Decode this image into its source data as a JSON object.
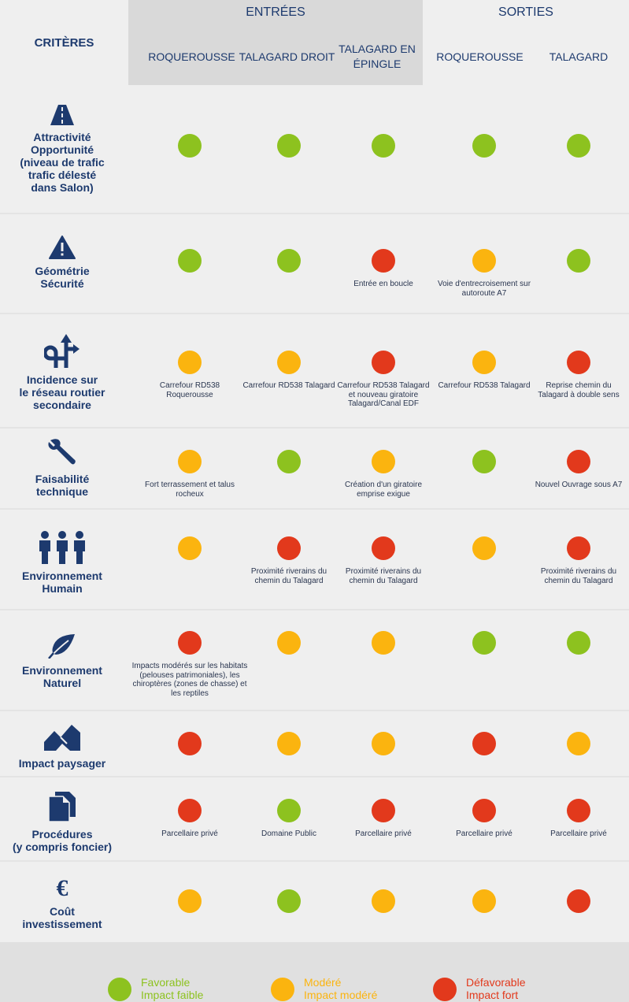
{
  "colors": {
    "green": "#8dc21f",
    "orange": "#fbb40f",
    "red": "#e2391c",
    "navy": "#1d3a6e"
  },
  "header": {
    "criteres": "CRITÈRES",
    "entrees": "ENTRÉES",
    "sorties": "SORTIES",
    "columns": [
      "ROQUEROUSSE",
      "TALAGARD DROIT",
      "TALAGARD EN ÉPINGLE",
      "ROQUEROUSSE",
      "TALAGARD"
    ]
  },
  "rows": [
    {
      "icon": "road-icon",
      "label": [
        "Attractivité",
        "Opportunité",
        "(niveau de trafic",
        "trafic délesté",
        "dans Salon)"
      ],
      "cells": [
        {
          "rating": "green",
          "note": ""
        },
        {
          "rating": "green",
          "note": ""
        },
        {
          "rating": "green",
          "note": ""
        },
        {
          "rating": "green",
          "note": ""
        },
        {
          "rating": "green",
          "note": ""
        }
      ]
    },
    {
      "icon": "warning-icon",
      "label": [
        "Géométrie",
        "Sécurité"
      ],
      "cells": [
        {
          "rating": "green",
          "note": ""
        },
        {
          "rating": "green",
          "note": ""
        },
        {
          "rating": "red",
          "note": "Entrée en boucle"
        },
        {
          "rating": "orange",
          "note": "Voie d'entrecroisement sur autoroute A7"
        },
        {
          "rating": "green",
          "note": ""
        }
      ]
    },
    {
      "icon": "road-network-icon",
      "label": [
        "Incidence sur",
        "le réseau routier",
        "secondaire"
      ],
      "cells": [
        {
          "rating": "orange",
          "note": "Carrefour RD538 Roquerousse"
        },
        {
          "rating": "orange",
          "note": "Carrefour RD538 Talagard"
        },
        {
          "rating": "red",
          "note": "Carrefour RD538 Talagard et nouveau giratoire Talagard/Canal EDF"
        },
        {
          "rating": "orange",
          "note": "Carrefour RD538 Talagard"
        },
        {
          "rating": "red",
          "note": "Reprise chemin du Talagard à double sens"
        }
      ]
    },
    {
      "icon": "wrench-icon",
      "label": [
        "Faisabilité",
        "technique"
      ],
      "cells": [
        {
          "rating": "orange",
          "note": "Fort terrassement et talus rocheux"
        },
        {
          "rating": "green",
          "note": ""
        },
        {
          "rating": "orange",
          "note": "Création d'un giratoire emprise exigue"
        },
        {
          "rating": "green",
          "note": ""
        },
        {
          "rating": "red",
          "note": "Nouvel Ouvrage sous A7"
        }
      ]
    },
    {
      "icon": "people-icon",
      "label": [
        "Environnement",
        "Humain"
      ],
      "cells": [
        {
          "rating": "orange",
          "note": ""
        },
        {
          "rating": "red",
          "note": "Proximité riverains du chemin du Talagard"
        },
        {
          "rating": "red",
          "note": "Proximité riverains du chemin du Talagard"
        },
        {
          "rating": "orange",
          "note": ""
        },
        {
          "rating": "red",
          "note": "Proximité riverains du chemin du Talagard"
        }
      ]
    },
    {
      "icon": "leaf-icon",
      "label": [
        "Environnement",
        "Naturel"
      ],
      "cells": [
        {
          "rating": "red",
          "note": "Impacts modérés sur les habitats (pelouses patrimoniales), les chiroptères (zones de chasse) et les reptiles"
        },
        {
          "rating": "orange",
          "note": ""
        },
        {
          "rating": "orange",
          "note": ""
        },
        {
          "rating": "green",
          "note": ""
        },
        {
          "rating": "green",
          "note": ""
        }
      ]
    },
    {
      "icon": "landscape-icon",
      "label": [
        "Impact paysager"
      ],
      "cells": [
        {
          "rating": "red",
          "note": ""
        },
        {
          "rating": "orange",
          "note": ""
        },
        {
          "rating": "orange",
          "note": ""
        },
        {
          "rating": "red",
          "note": ""
        },
        {
          "rating": "orange",
          "note": ""
        }
      ]
    },
    {
      "icon": "documents-icon",
      "label": [
        "Procédures",
        "(y compris foncier)"
      ],
      "cells": [
        {
          "rating": "red",
          "note": "Parcellaire privé"
        },
        {
          "rating": "green",
          "note": "Domaine Public"
        },
        {
          "rating": "red",
          "note": "Parcellaire privé"
        },
        {
          "rating": "red",
          "note": "Parcellaire privé"
        },
        {
          "rating": "red",
          "note": "Parcellaire privé"
        }
      ]
    },
    {
      "icon": "euro-icon",
      "label": [
        "Coût",
        "investissement"
      ],
      "cells": [
        {
          "rating": "orange",
          "note": ""
        },
        {
          "rating": "green",
          "note": ""
        },
        {
          "rating": "orange",
          "note": ""
        },
        {
          "rating": "orange",
          "note": ""
        },
        {
          "rating": "red",
          "note": ""
        }
      ]
    }
  ],
  "legend": [
    {
      "rating": "green",
      "line1": "Favorable",
      "line2": "Impact faible"
    },
    {
      "rating": "orange",
      "line1": "Modéré",
      "line2": "Impact modéré"
    },
    {
      "rating": "red",
      "line1": "Défavorable",
      "line2": "Impact fort"
    }
  ]
}
